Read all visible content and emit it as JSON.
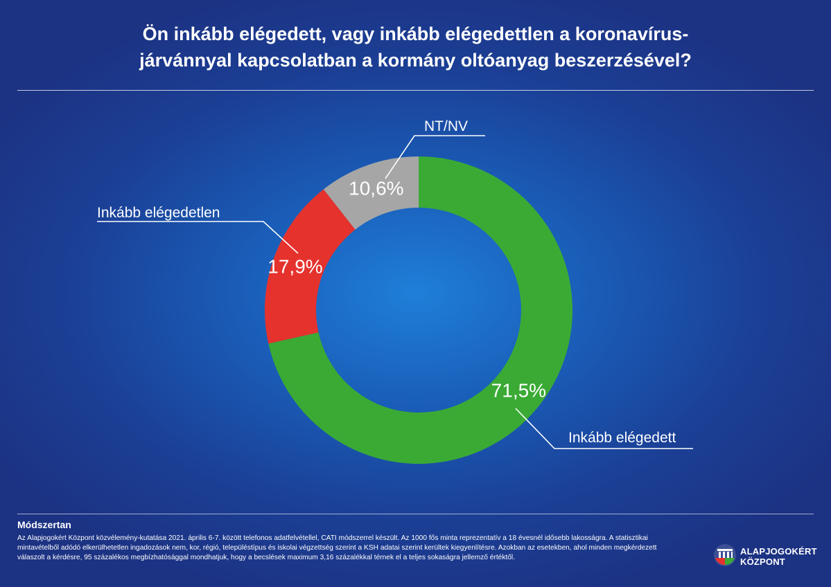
{
  "title_lines": [
    "Ön inkább elégedett, vagy inkább elégedettlen a koronavírus-",
    "járvánnyal kapcsolatban a kormány oltóanyag beszerzésével?"
  ],
  "chart_data": {
    "type": "pie",
    "variant": "donut",
    "start": "top, clockwise",
    "slices": [
      {
        "label": "Inkább elégedett",
        "value": 71.5,
        "value_label": "71,5%",
        "color": "#3aaa35"
      },
      {
        "label": "Inkább elégedetlen",
        "value": 17.9,
        "value_label": "17,9%",
        "color": "#e5322d"
      },
      {
        "label": "NT/NV",
        "value": 10.6,
        "value_label": "10,6%",
        "color": "#a6a6a6"
      }
    ]
  },
  "methodology": {
    "title": "Módszertan",
    "text": "Az Alapjogokért Központ közvélemény-kutatása 2021. április 6-7. között telefonos adatfelvétellel, CATI módszerrel készült. Az 1000 fős minta reprezentatív a 18 évesnél idősebb lakosságra. A statisztikai mintavételből adódó elkerülhetetlen ingadozások nem, kor, régió, településtípus és iskolai végzettség szerint a KSH adatai szerint kerültek kiegyenlítésre. Azokban az esetekben, ahol minden megkérdezett válaszolt a kérdésre, 95 százalékos megbízhatósággal mondhatjuk, hogy a becslések maximum 3,16 százalékkal térnek el a teljes sokaságra jellemző értéktől."
  },
  "logo": {
    "line1": "ALAPJOGOKÉRT",
    "line2": "KÖZPONT",
    "icon": "institution-logo-icon"
  }
}
